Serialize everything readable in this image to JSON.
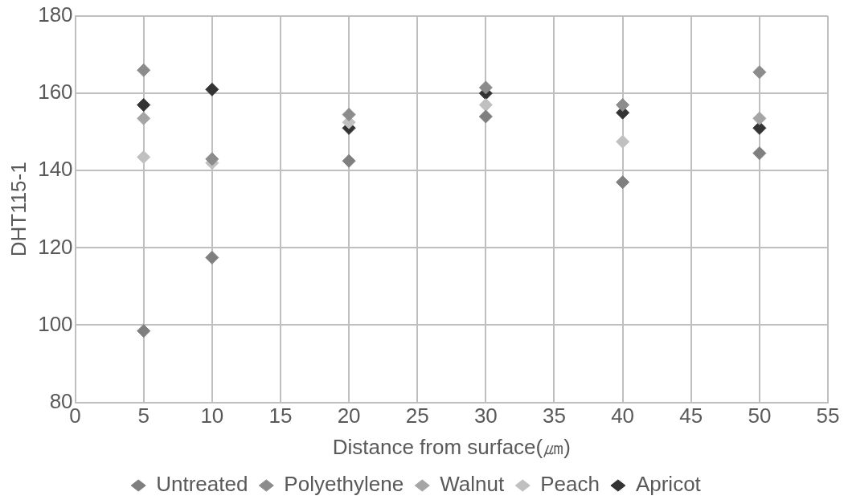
{
  "chart_data": {
    "type": "scatter",
    "xlabel": "Distance from surface(㎛)",
    "ylabel": "DHT115-1",
    "x": [
      5,
      10,
      20,
      30,
      40,
      50
    ],
    "series": [
      {
        "name": "Untreated",
        "color": "#7f7f7f",
        "values": [
          98.5,
          117.5,
          142.5,
          154,
          137,
          144.5
        ]
      },
      {
        "name": "Polyethylene",
        "color": "#8c8c8c",
        "values": [
          166,
          143,
          154.5,
          161.5,
          157,
          165.5
        ]
      },
      {
        "name": "Walnut",
        "color": "#a5a5a5",
        "values": [
          153.5,
          null,
          null,
          null,
          null,
          153.5
        ]
      },
      {
        "name": "Peach",
        "color": "#c0c0c0",
        "values": [
          143.5,
          142,
          152.5,
          157,
          147.5,
          null
        ]
      },
      {
        "name": "Apricot",
        "color": "#333333",
        "values": [
          157,
          161,
          151,
          160,
          155,
          151
        ]
      }
    ],
    "xlim": [
      0,
      55
    ],
    "xticks": [
      0,
      5,
      10,
      15,
      20,
      25,
      30,
      35,
      40,
      45,
      50,
      55
    ],
    "ylim": [
      80,
      180
    ],
    "yticks": [
      80,
      100,
      120,
      140,
      160,
      180
    ],
    "grid": true,
    "legend": "bottom",
    "marker": "diamond"
  }
}
